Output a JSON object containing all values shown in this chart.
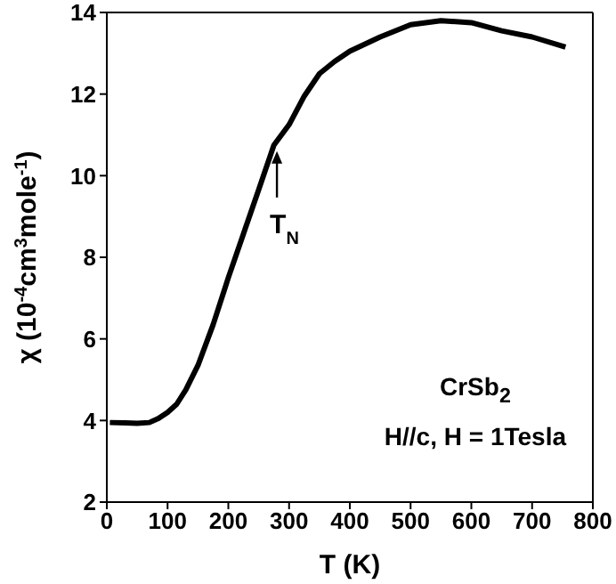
{
  "chart_data": {
    "type": "line",
    "xlabel": "T (K)",
    "ylabel": "χ (10$^{-4}$cm$^{3}$mole$^{-1}$)",
    "x": [
      5,
      30,
      50,
      70,
      85,
      100,
      115,
      130,
      150,
      175,
      200,
      225,
      250,
      275,
      300,
      325,
      350,
      375,
      400,
      450,
      500,
      550,
      600,
      650,
      700,
      755
    ],
    "series": [
      {
        "color": "#000000",
        "values": [
          3.95,
          3.94,
          3.93,
          3.95,
          4.05,
          4.2,
          4.4,
          4.75,
          5.35,
          6.35,
          7.5,
          8.58,
          9.66,
          10.75,
          11.25,
          11.95,
          12.5,
          12.8,
          13.05,
          13.4,
          13.7,
          13.8,
          13.75,
          13.55,
          13.4,
          13.15
        ]
      }
    ],
    "xlim": [
      0,
      800
    ],
    "xticks": [
      0,
      100,
      200,
      300,
      400,
      500,
      600,
      700,
      800
    ],
    "ylim": [
      2,
      14
    ],
    "yticks": [
      2,
      4,
      6,
      8,
      10,
      12,
      14
    ],
    "annotations": [
      {
        "text": "T$_{N}$",
        "x": 280,
        "y": 10.6
      },
      "CrSb$_{2}$",
      "H//c, H = 1Tesla"
    ]
  }
}
